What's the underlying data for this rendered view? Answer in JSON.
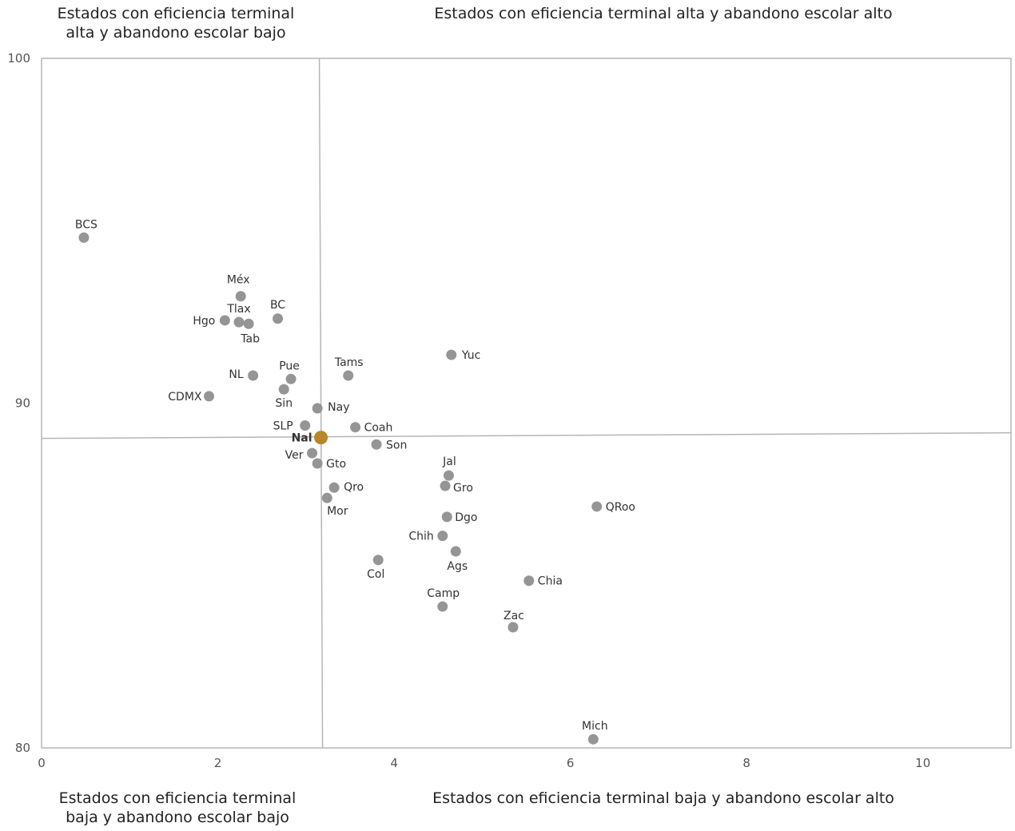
{
  "quadrant_labels": {
    "top_left": [
      "Estados con eficiencia terminal",
      "alta y abandono escolar bajo"
    ],
    "top_right": [
      "Estados con eficiencia terminal alta y abandono escolar alto"
    ],
    "bottom_left": [
      "Estados con eficiencia terminal",
      "baja y abandono escolar bajo"
    ],
    "bottom_right": [
      "Estados con eficiencia terminal baja y abandono escolar alto"
    ]
  },
  "colors": {
    "point": "#959595",
    "national": "#b8862a",
    "axis": "#b5b5b5"
  },
  "chart_data": {
    "type": "scatter",
    "title": "",
    "xlabel": "",
    "ylabel": "",
    "xlim": [
      0,
      11
    ],
    "ylim": [
      80,
      100
    ],
    "x_ticks": [
      "0",
      "2",
      "4",
      "6",
      "8",
      "10"
    ],
    "y_ticks": [
      "80",
      "90",
      "100"
    ],
    "grid": false,
    "reference_lines": {
      "x": 3.17,
      "y": 89.0
    },
    "points": [
      {
        "label": "BCS",
        "x": 0.48,
        "y": 94.8
      },
      {
        "label": "Méx",
        "x": 2.26,
        "y": 93.1
      },
      {
        "label": "Hgo",
        "x": 2.08,
        "y": 92.4
      },
      {
        "label": "Tlax",
        "x": 2.24,
        "y": 92.35
      },
      {
        "label": "Tab",
        "x": 2.35,
        "y": 92.3
      },
      {
        "label": "BC",
        "x": 2.68,
        "y": 92.45
      },
      {
        "label": "NL",
        "x": 2.4,
        "y": 90.8
      },
      {
        "label": "CDMX",
        "x": 1.9,
        "y": 90.2
      },
      {
        "label": "Pue",
        "x": 2.83,
        "y": 90.7
      },
      {
        "label": "Sin",
        "x": 2.75,
        "y": 90.4
      },
      {
        "label": "Tams",
        "x": 3.48,
        "y": 90.8
      },
      {
        "label": "Yuc",
        "x": 4.65,
        "y": 91.4
      },
      {
        "label": "Nay",
        "x": 3.13,
        "y": 89.85
      },
      {
        "label": "SLP",
        "x": 2.99,
        "y": 89.35
      },
      {
        "label": "Nal",
        "x": 3.17,
        "y": 89.0,
        "national": true
      },
      {
        "label": "Coah",
        "x": 3.56,
        "y": 89.3
      },
      {
        "label": "Son",
        "x": 3.8,
        "y": 88.8
      },
      {
        "label": "Ver",
        "x": 3.07,
        "y": 88.55
      },
      {
        "label": "Gto",
        "x": 3.13,
        "y": 88.25
      },
      {
        "label": "Jal",
        "x": 4.62,
        "y": 87.9
      },
      {
        "label": "Gro",
        "x": 4.58,
        "y": 87.6
      },
      {
        "label": "Qro",
        "x": 3.32,
        "y": 87.55
      },
      {
        "label": "Mor",
        "x": 3.24,
        "y": 87.25
      },
      {
        "label": "QRoo",
        "x": 6.3,
        "y": 87.0
      },
      {
        "label": "Dgo",
        "x": 4.6,
        "y": 86.7
      },
      {
        "label": "Chih",
        "x": 4.55,
        "y": 86.15
      },
      {
        "label": "Ags",
        "x": 4.7,
        "y": 85.7
      },
      {
        "label": "Col",
        "x": 3.82,
        "y": 85.45
      },
      {
        "label": "Chia",
        "x": 5.53,
        "y": 84.85
      },
      {
        "label": "Camp",
        "x": 4.55,
        "y": 84.1
      },
      {
        "label": "Zac",
        "x": 5.35,
        "y": 83.5
      },
      {
        "label": "Mich",
        "x": 6.26,
        "y": 80.25
      }
    ]
  }
}
